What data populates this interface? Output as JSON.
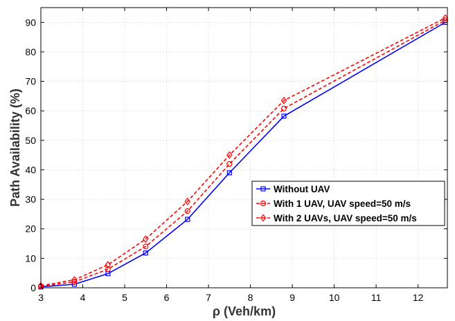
{
  "chart_data": {
    "type": "line",
    "title": "",
    "xlabel": "ρ (Veh/km)",
    "ylabel": "Path Availability (%)",
    "xlim": [
      3,
      12.7
    ],
    "ylim": [
      0,
      95
    ],
    "xticks": [
      3,
      4,
      5,
      6,
      7,
      8,
      9,
      10,
      11,
      12
    ],
    "yticks": [
      0,
      10,
      20,
      30,
      40,
      50,
      60,
      70,
      80,
      90
    ],
    "grid": true,
    "legend_position": "lower-right",
    "x": [
      3,
      3.8,
      4.6,
      5.5,
      6.5,
      7.5,
      8.8,
      12.65
    ],
    "series": [
      {
        "name": "Without UAV",
        "values": [
          0.3,
          1.2,
          4.8,
          11.8,
          23.2,
          39,
          58.2,
          90
        ],
        "color": "#0000ff",
        "line_style": "solid",
        "marker": "square"
      },
      {
        "name": "With 1 UAV, UAV speed=50 m/s",
        "values": [
          0.5,
          2,
          6.3,
          14,
          26,
          42,
          60.8,
          90.7
        ],
        "color": "#ff0000",
        "line_style": "dashed",
        "marker": "circle"
      },
      {
        "name": "With 2 UAVs, UAV speed=50 m/s",
        "values": [
          0.7,
          2.7,
          7.8,
          16.5,
          29.3,
          45,
          63.5,
          91.5
        ],
        "color": "#ff0000",
        "line_style": "dashed",
        "marker": "diamond"
      }
    ]
  }
}
